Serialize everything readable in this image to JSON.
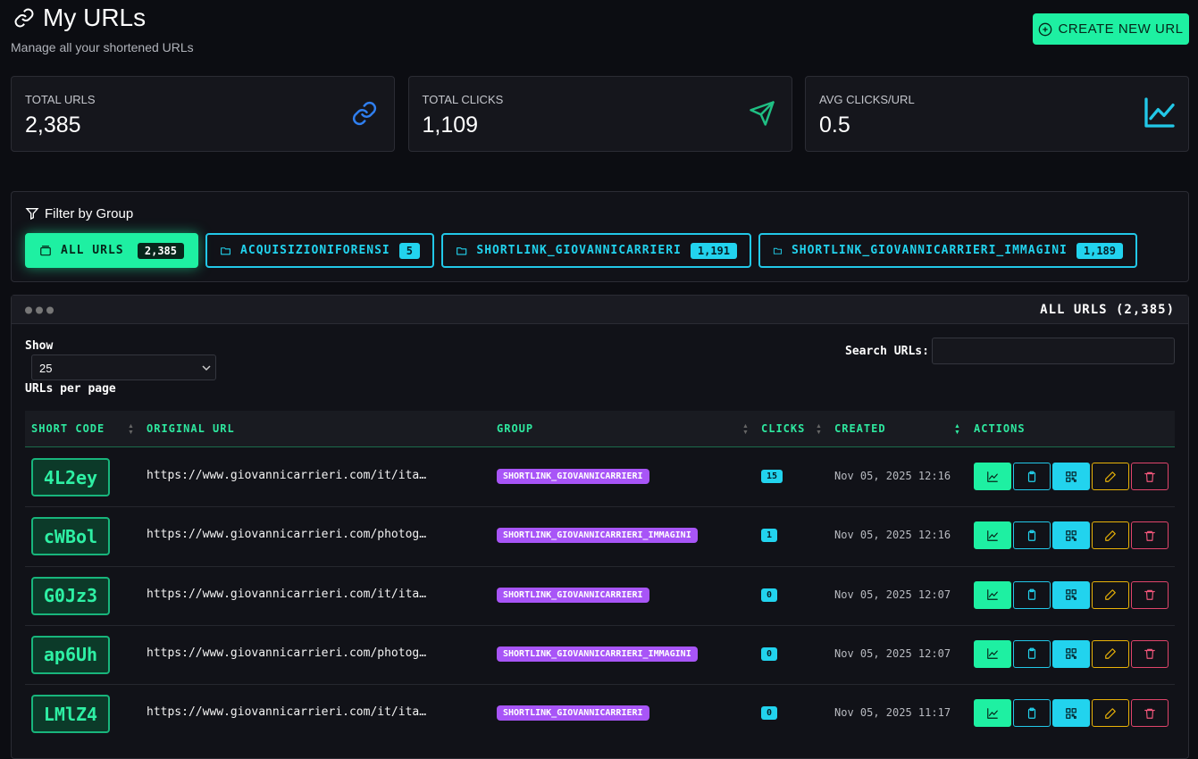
{
  "header": {
    "title": "My URLs",
    "subtitle": "Manage all your shortened URLs",
    "create_button": "CREATE NEW URL"
  },
  "stats": [
    {
      "label": "TOTAL URLS",
      "value": "2,385"
    },
    {
      "label": "TOTAL CLICKS",
      "value": "1,109"
    },
    {
      "label": "AVG CLICKS/URL",
      "value": "0.5"
    }
  ],
  "filter": {
    "title": "Filter by Group",
    "groups": [
      {
        "name": "ALL URLS",
        "count": "2,385"
      },
      {
        "name": "ACQUISIZIONIFORENSI",
        "count": "5"
      },
      {
        "name": "SHORTLINK_GIOVANNICARRIERI",
        "count": "1,191"
      },
      {
        "name": "SHORTLINK_GIOVANNICARRIERI_IMMAGINI",
        "count": "1,189"
      }
    ]
  },
  "table_panel": {
    "title": "ALL URLS (2,385)",
    "show_label": "Show",
    "page_size": "25",
    "per_page_label": "URLs per page",
    "search_label": "Search URLs:",
    "columns": [
      "SHORT CODE",
      "ORIGINAL URL",
      "GROUP",
      "CLICKS",
      "CREATED",
      "ACTIONS"
    ],
    "rows": [
      {
        "short_code": "4L2ey",
        "url": "https://www.giovannicarrieri.com/it/ita…",
        "group": "SHORTLINK_GIOVANNICARRIERI",
        "clicks": "15",
        "created": "Nov 05, 2025 12:16"
      },
      {
        "short_code": "cWBol",
        "url": "https://www.giovannicarrieri.com/photog…",
        "group": "SHORTLINK_GIOVANNICARRIERI_IMMAGINI",
        "clicks": "1",
        "created": "Nov 05, 2025 12:16"
      },
      {
        "short_code": "G0Jz3",
        "url": "https://www.giovannicarrieri.com/it/ita…",
        "group": "SHORTLINK_GIOVANNICARRIERI",
        "clicks": "0",
        "created": "Nov 05, 2025 12:07"
      },
      {
        "short_code": "ap6Uh",
        "url": "https://www.giovannicarrieri.com/photog…",
        "group": "SHORTLINK_GIOVANNICARRIERI_IMMAGINI",
        "clicks": "0",
        "created": "Nov 05, 2025 12:07"
      },
      {
        "short_code": "LMlZ4",
        "url": "https://www.giovannicarrieri.com/it/ita…",
        "group": "SHORTLINK_GIOVANNICARRIERI",
        "clicks": "0",
        "created": "Nov 05, 2025 11:17"
      }
    ]
  }
}
